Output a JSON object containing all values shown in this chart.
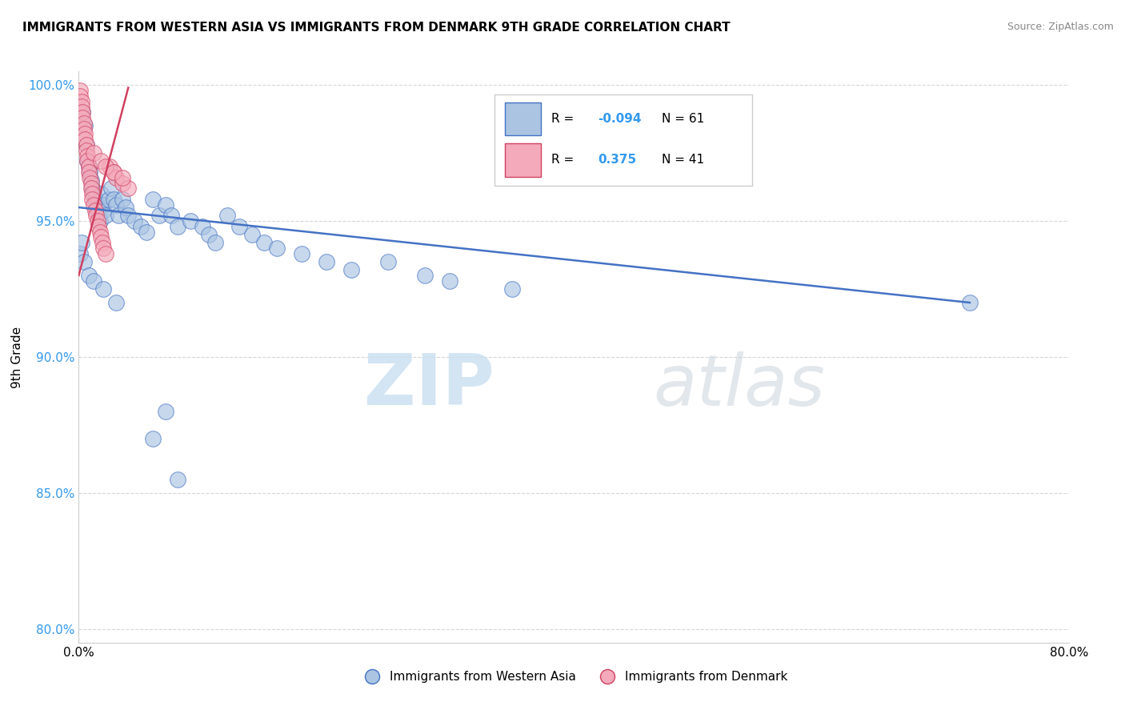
{
  "title": "IMMIGRANTS FROM WESTERN ASIA VS IMMIGRANTS FROM DENMARK 9TH GRADE CORRELATION CHART",
  "source": "Source: ZipAtlas.com",
  "xlabel_bottom": [
    "Immigrants from Western Asia",
    "Immigrants from Denmark"
  ],
  "ylabel": "9th Grade",
  "xlim": [
    0.0,
    0.8
  ],
  "ylim": [
    0.795,
    1.005
  ],
  "xticks": [
    0.0,
    0.1,
    0.2,
    0.3,
    0.4,
    0.5,
    0.6,
    0.7,
    0.8
  ],
  "xticklabels": [
    "0.0%",
    "",
    "",
    "",
    "",
    "",
    "",
    "",
    "80.0%"
  ],
  "yticks": [
    0.8,
    0.85,
    0.9,
    0.95,
    1.0
  ],
  "yticklabels": [
    "80.0%",
    "85.0%",
    "90.0%",
    "95.0%",
    "100.0%"
  ],
  "legend_R1": "-0.094",
  "legend_N1": "61",
  "legend_R2": "0.375",
  "legend_N2": "41",
  "blue_color": "#aac4e2",
  "pink_color": "#f4aabb",
  "blue_line_color": "#4472c4",
  "pink_line_color": "#d04060",
  "blue_x": [
    0.003,
    0.005,
    0.006,
    0.007,
    0.008,
    0.009,
    0.01,
    0.011,
    0.012,
    0.013,
    0.014,
    0.015,
    0.016,
    0.017,
    0.018,
    0.019,
    0.02,
    0.022,
    0.024,
    0.026,
    0.028,
    0.03,
    0.032,
    0.035,
    0.038,
    0.04,
    0.045,
    0.05,
    0.055,
    0.06,
    0.065,
    0.07,
    0.075,
    0.08,
    0.09,
    0.1,
    0.105,
    0.11,
    0.12,
    0.13,
    0.14,
    0.15,
    0.16,
    0.18,
    0.2,
    0.22,
    0.25,
    0.28,
    0.3,
    0.35,
    0.001,
    0.002,
    0.004,
    0.008,
    0.012,
    0.02,
    0.03,
    0.06,
    0.07,
    0.08,
    0.72
  ],
  "blue_y": [
    0.99,
    0.985,
    0.978,
    0.972,
    0.97,
    0.968,
    0.965,
    0.962,
    0.96,
    0.958,
    0.956,
    0.954,
    0.952,
    0.95,
    0.96,
    0.956,
    0.954,
    0.952,
    0.958,
    0.962,
    0.958,
    0.956,
    0.952,
    0.958,
    0.955,
    0.952,
    0.95,
    0.948,
    0.946,
    0.958,
    0.952,
    0.956,
    0.952,
    0.948,
    0.95,
    0.948,
    0.945,
    0.942,
    0.952,
    0.948,
    0.945,
    0.942,
    0.94,
    0.938,
    0.935,
    0.932,
    0.935,
    0.93,
    0.928,
    0.925,
    0.938,
    0.942,
    0.935,
    0.93,
    0.928,
    0.925,
    0.92,
    0.87,
    0.88,
    0.855,
    0.92
  ],
  "pink_x": [
    0.001,
    0.001,
    0.002,
    0.002,
    0.003,
    0.003,
    0.004,
    0.004,
    0.005,
    0.005,
    0.006,
    0.006,
    0.007,
    0.007,
    0.008,
    0.008,
    0.009,
    0.01,
    0.01,
    0.011,
    0.011,
    0.012,
    0.013,
    0.014,
    0.015,
    0.016,
    0.017,
    0.018,
    0.019,
    0.02,
    0.022,
    0.025,
    0.028,
    0.03,
    0.035,
    0.04,
    0.012,
    0.018,
    0.022,
    0.028,
    0.035
  ],
  "pink_y": [
    0.998,
    0.996,
    0.994,
    0.992,
    0.99,
    0.988,
    0.986,
    0.984,
    0.982,
    0.98,
    0.978,
    0.976,
    0.974,
    0.972,
    0.97,
    0.968,
    0.966,
    0.964,
    0.962,
    0.96,
    0.958,
    0.956,
    0.954,
    0.952,
    0.95,
    0.948,
    0.946,
    0.944,
    0.942,
    0.94,
    0.938,
    0.97,
    0.968,
    0.966,
    0.964,
    0.962,
    0.975,
    0.972,
    0.97,
    0.968,
    0.966
  ],
  "blue_line_x0": 0.0,
  "blue_line_y0": 0.955,
  "blue_line_x1": 0.72,
  "blue_line_y1": 0.92,
  "pink_line_x0": 0.0,
  "pink_line_y0": 0.93,
  "pink_line_x1": 0.04,
  "pink_line_y1": 0.999
}
